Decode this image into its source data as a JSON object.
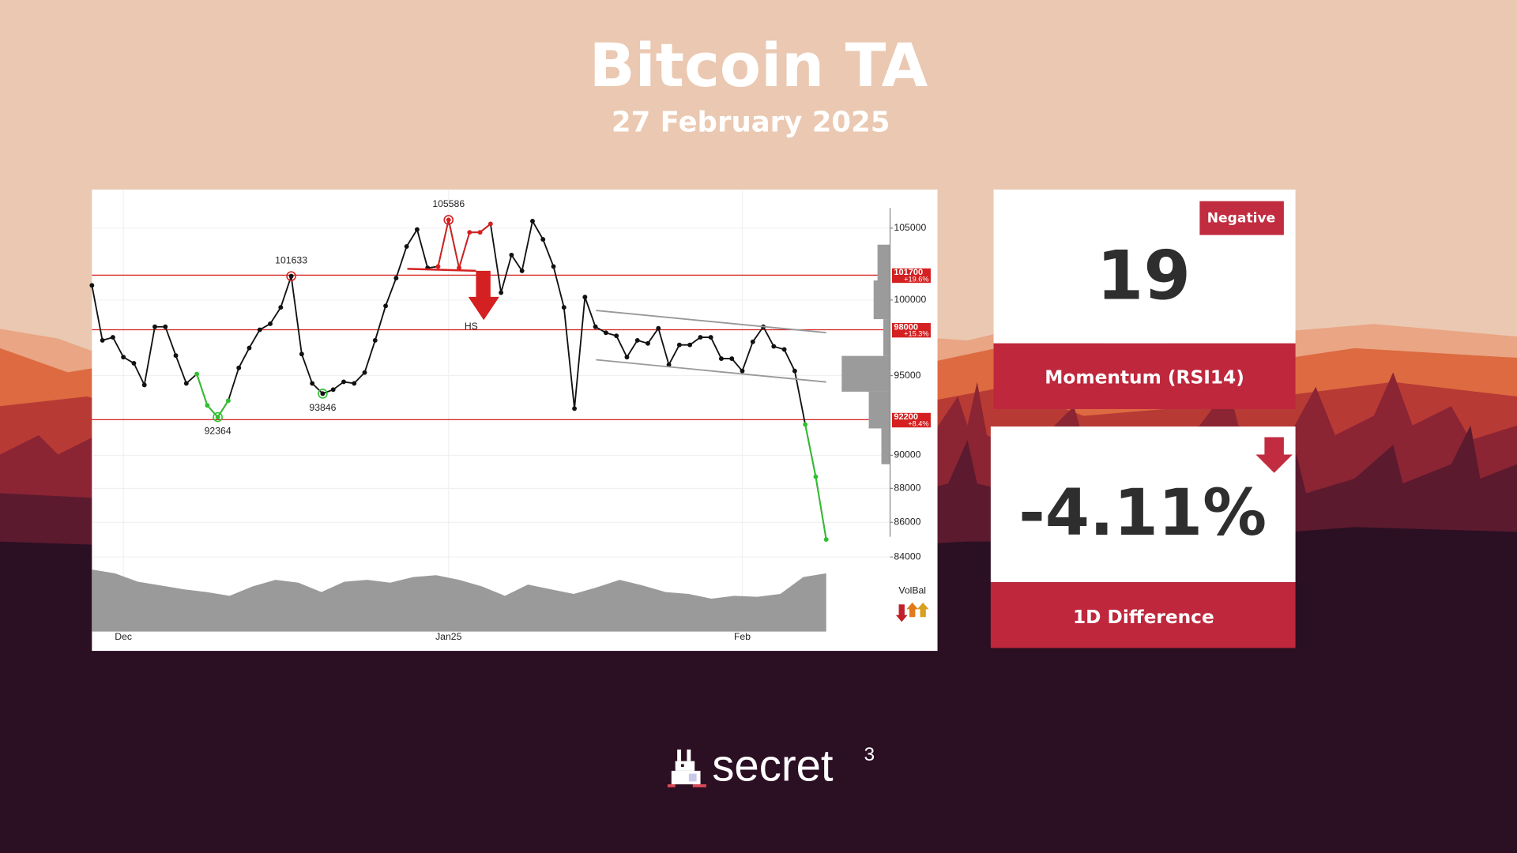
{
  "header": {
    "title": "Bitcoin TA",
    "subtitle": "27 February 2025"
  },
  "chart_data": {
    "type": "line",
    "log_scale": true,
    "ylim": [
      83500,
      107500
    ],
    "yticks": [
      84000,
      86000,
      88000,
      90000,
      95000,
      100000,
      105000
    ],
    "categories": [
      null,
      null,
      null,
      "Dec",
      null,
      null,
      null,
      null,
      null,
      null,
      null,
      null,
      null,
      null,
      null,
      null,
      null,
      null,
      null,
      null,
      null,
      null,
      null,
      null,
      null,
      null,
      null,
      null,
      null,
      null,
      null,
      null,
      null,
      null,
      "Jan25",
      null,
      null,
      null,
      null,
      null,
      null,
      null,
      null,
      null,
      null,
      null,
      null,
      null,
      null,
      null,
      null,
      null,
      null,
      null,
      null,
      null,
      null,
      null,
      null,
      null,
      null,
      null,
      "Feb",
      null,
      null,
      null,
      null,
      null,
      null,
      null,
      null
    ],
    "series": [
      {
        "color": "#111111",
        "values": [
          101000,
          97300,
          97500,
          96200,
          95800,
          94400,
          98200,
          98200,
          96300,
          94500,
          95100,
          93100,
          92364,
          93400,
          95500,
          96800,
          98000,
          98400,
          99500,
          101633,
          96400,
          94500,
          93846,
          94100,
          94600,
          94500,
          95200,
          97300,
          99600,
          101500,
          103700,
          104900,
          102200,
          102300,
          105586,
          102200,
          104700,
          104700,
          105300,
          100500,
          103100,
          102000,
          105500,
          104200,
          102300,
          99500,
          92900,
          100200,
          98200,
          97800,
          97600,
          96200,
          97300,
          97100,
          98100,
          95700,
          97000,
          97000,
          97500,
          97500,
          96100,
          96100,
          95300,
          97200,
          98200,
          96900,
          96700,
          95300,
          91900,
          88700,
          85000
        ]
      }
    ],
    "highlights": [
      {
        "from": 10,
        "to": 13,
        "color": "#2fc12f"
      },
      {
        "from": 33,
        "to": 38,
        "color": "#d42020"
      },
      {
        "from": 68,
        "to": 70,
        "color": "#2fc12f"
      }
    ],
    "markers": [
      {
        "index": 12,
        "color": "#2fc12f",
        "position": "below"
      },
      {
        "index": 19,
        "color": "#d42020",
        "position": "above"
      },
      {
        "index": 22,
        "color": "#2fc12f",
        "position": "below"
      },
      {
        "index": 34,
        "color": "#d42020",
        "position": "above"
      }
    ],
    "levels": [
      {
        "value": 101700,
        "change": "+19.6%"
      },
      {
        "value": 98000,
        "change": "+15.3%"
      },
      {
        "value": 92200,
        "change": "+8.4%"
      }
    ],
    "level_color": "#d42020",
    "volume": {
      "color": "#9a9a9a",
      "ylim": [
        0,
        70
      ],
      "values": [
        66,
        62,
        53,
        49,
        45,
        42,
        38,
        48,
        55,
        52,
        42,
        53,
        55,
        52,
        58,
        60,
        55,
        48,
        38,
        50,
        45,
        40,
        47,
        55,
        49,
        42,
        40,
        35,
        38,
        37,
        40,
        58,
        62
      ]
    },
    "annotations": {
      "pattern": "HS",
      "volume_label": "VolBal"
    }
  },
  "rsi": {
    "badge": "Negative",
    "value": 19,
    "label": "Momentum (RSI14)"
  },
  "difference": {
    "value": "-4.11%",
    "label": "1D Difference"
  },
  "brand": {
    "name": "secret",
    "superscript": "3"
  }
}
